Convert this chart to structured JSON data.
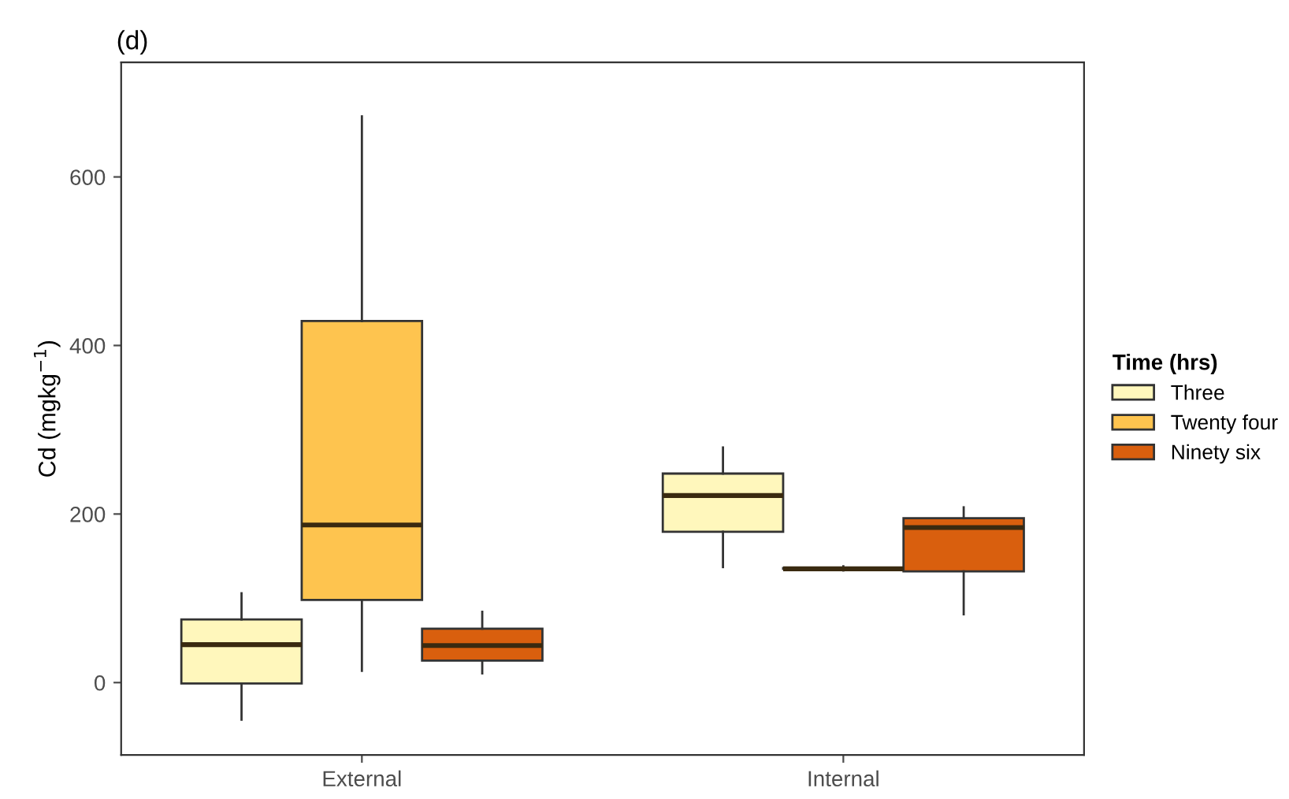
{
  "chart_data": {
    "type": "box",
    "title": "(d)",
    "ylabel": "Cd (mgkg$^{−1}$)",
    "legend_title": "Time (hrs)",
    "categories": [
      "External",
      "Internal"
    ],
    "ylim": [
      -86,
      736
    ],
    "yticks": [
      0,
      200,
      400,
      600
    ],
    "grid": false,
    "legend": "right",
    "series": [
      {
        "name": "Three",
        "color": "#fff7bc",
        "boxes": [
          {
            "low": -44,
            "q1": -1,
            "median": 45,
            "q3": 75,
            "high": 106
          },
          {
            "low": 137,
            "q1": 179,
            "median": 222,
            "q3": 248,
            "high": 279
          }
        ]
      },
      {
        "name": "Twenty four",
        "color": "#fec44f",
        "boxes": [
          {
            "low": 14,
            "q1": 98,
            "median": 187,
            "q3": 429,
            "high": 672
          },
          {
            "low": 133,
            "q1": 135,
            "median": 135,
            "q3": 136,
            "high": 138
          }
        ]
      },
      {
        "name": "Ninety six",
        "color": "#d95f0e",
        "boxes": [
          {
            "low": 11,
            "q1": 26,
            "median": 44,
            "q3": 64,
            "high": 84
          },
          {
            "low": 81,
            "q1": 132,
            "median": 184,
            "q3": 195,
            "high": 208
          }
        ]
      }
    ]
  }
}
